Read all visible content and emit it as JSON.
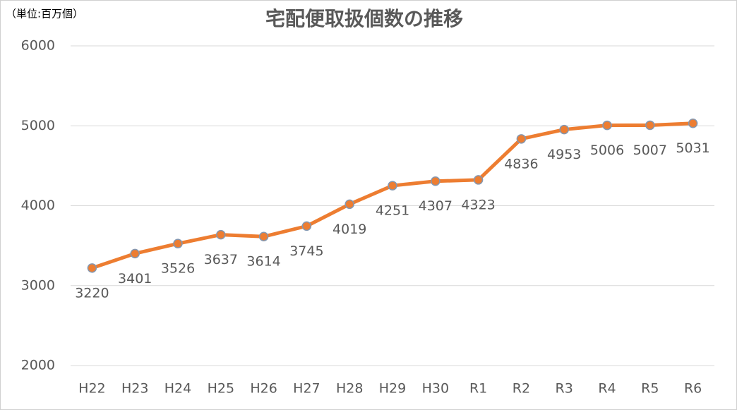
{
  "chart_data": {
    "type": "line",
    "title": "宅配便取扱個数の推移",
    "y_axis_label": "（単位:百万個）",
    "categories": [
      "H22",
      "H23",
      "H24",
      "H25",
      "H26",
      "H27",
      "H28",
      "H29",
      "H30",
      "R1",
      "R2",
      "R3",
      "R4",
      "R5",
      "R6"
    ],
    "series": [
      {
        "name": "宅配便取扱個数",
        "color": "#ed7d31",
        "marker_edge": "#8497b0",
        "values": [
          3220,
          3401,
          3526,
          3637,
          3614,
          3745,
          4019,
          4251,
          4307,
          4323,
          4836,
          4953,
          5006,
          5007,
          5031
        ]
      }
    ],
    "ylim": [
      2000,
      6000
    ],
    "yticks": [
      2000,
      3000,
      4000,
      5000,
      6000
    ],
    "grid": true,
    "data_labels": true
  }
}
